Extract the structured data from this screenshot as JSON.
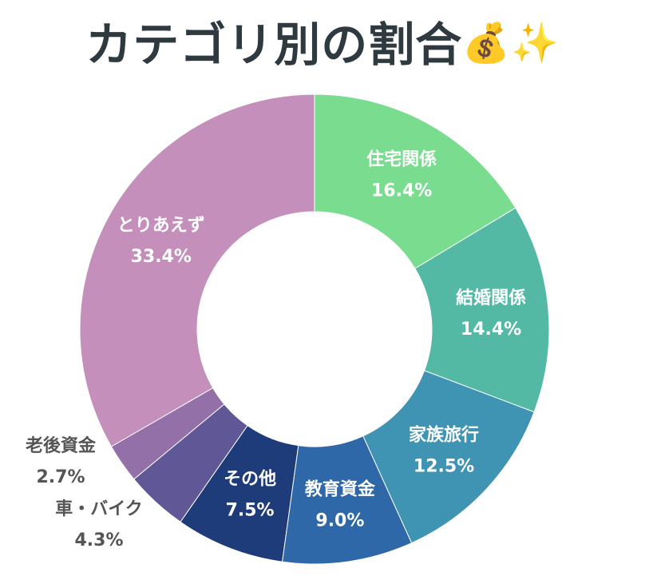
{
  "title": "カテゴリ別の割合",
  "title_emoji": "💰✨",
  "chart_data": {
    "type": "pie",
    "title": "カテゴリ別の割合",
    "donut": true,
    "categories": [
      "住宅関係",
      "結婚関係",
      "家族旅行",
      "教育資金",
      "その他",
      "車・バイク",
      "老後資金",
      "とりあえず"
    ],
    "values": [
      16.4,
      14.4,
      12.5,
      9.0,
      7.5,
      4.3,
      2.7,
      33.4
    ],
    "labels": [
      "16.4%",
      "14.4%",
      "12.5%",
      "9.0%",
      "7.5%",
      "4.3%",
      "2.7%",
      "33.4%"
    ],
    "colors": [
      "#7adc8f",
      "#53b9a5",
      "#3f93b3",
      "#2f68a8",
      "#1e3c7a",
      "#5f5796",
      "#9371a8",
      "#c48fba"
    ],
    "label_colors": [
      "#ffffff",
      "#ffffff",
      "#ffffff",
      "#ffffff",
      "#ffffff",
      "#555555",
      "#555555",
      "#ffffff"
    ],
    "legend": "none",
    "start": "top",
    "direction": "clockwise"
  }
}
